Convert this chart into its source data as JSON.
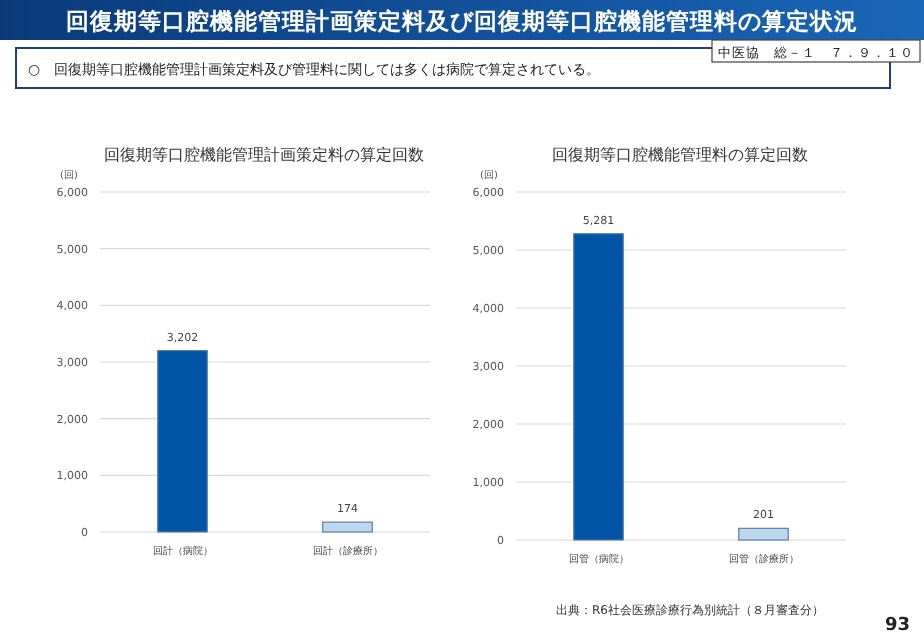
{
  "chart_data": [
    {
      "type": "bar",
      "title": "回復期等口腔機能管理計画策定料の算定回数",
      "ylabel": "(回)",
      "categories": [
        "回計（病院）",
        "回計（診療所）"
      ],
      "values": [
        3202,
        174
      ],
      "colors": [
        "#0055a6",
        "#bdd7ee"
      ],
      "ylim": [
        0,
        6000
      ],
      "yticks": [
        {
          "value": 0,
          "label": "0"
        },
        {
          "value": 1000,
          "label": "1,000"
        },
        {
          "value": 2000,
          "label": "2,000"
        },
        {
          "value": 3000,
          "label": "3,000"
        },
        {
          "value": 4000,
          "label": "4,000"
        },
        {
          "value": 5000,
          "label": "5,000"
        },
        {
          "value": 6000,
          "label": "6,000"
        }
      ],
      "grid": "y",
      "value_labels": [
        "3,202",
        "174"
      ],
      "annotations": [
        "回復期等口腔機能管理計画策定料及び回復期等口腔機能管理料の算定状況",
        "○　回復期等口腔機能管理計画策定料及び管理料に関しては多くは病院で算定されている。",
        "中医協　総－１　７．９．１０"
      ]
    },
    {
      "type": "bar",
      "title": "回復期等口腔機能管理料の算定回数",
      "ylabel": "(回)",
      "categories": [
        "回管（病院）",
        "回管（診療所）"
      ],
      "values": [
        5281,
        201
      ],
      "colors": [
        "#0055a6",
        "#bdd7ee"
      ],
      "ylim": [
        0,
        6000
      ],
      "yticks": [
        {
          "value": 0,
          "label": "0"
        },
        {
          "value": 1000,
          "label": "1,000"
        },
        {
          "value": 2000,
          "label": "2,000"
        },
        {
          "value": 3000,
          "label": "3,000"
        },
        {
          "value": 4000,
          "label": "4,000"
        },
        {
          "value": 5000,
          "label": "5,000"
        },
        {
          "value": 6000,
          "label": "6,000"
        }
      ],
      "grid": "y",
      "value_labels": [
        "5,281",
        "201"
      ],
      "annotations": [
        "出典：R6社会医療診療行為別統計（８月審査分）",
        "93"
      ]
    }
  ]
}
